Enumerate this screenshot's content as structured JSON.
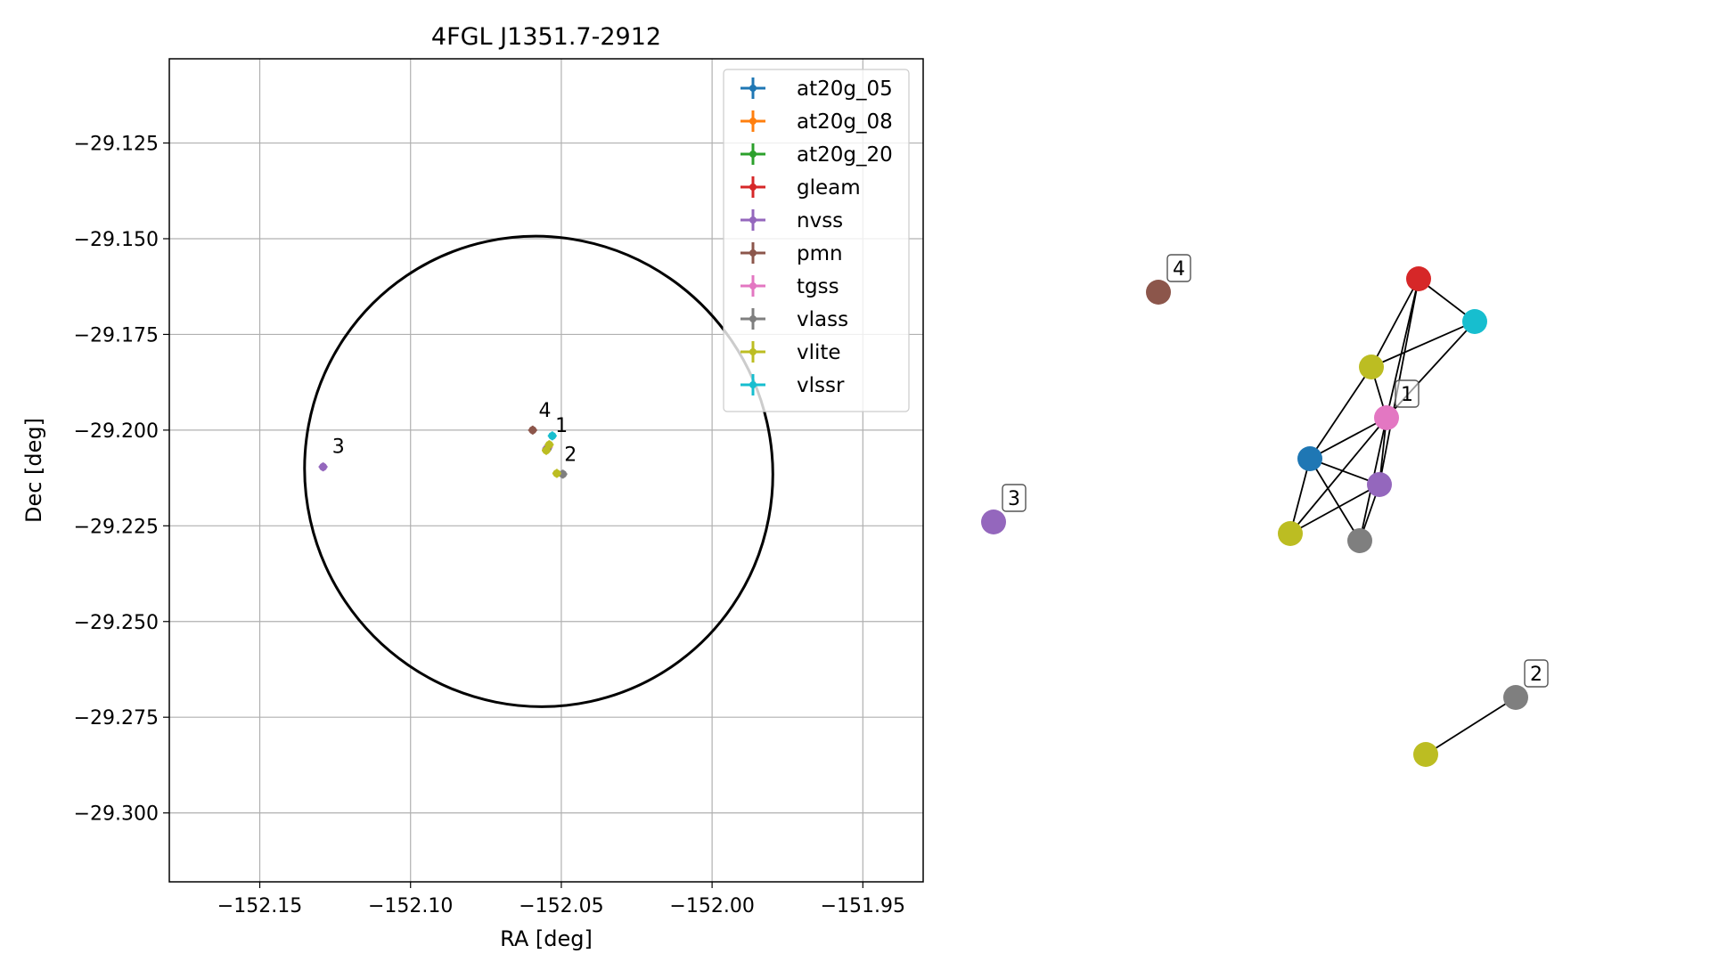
{
  "chart_data": [
    {
      "type": "scatter",
      "title": "4FGL J1351.7-2912",
      "xlabel": "RA [deg]",
      "ylabel": "Dec [deg]",
      "xlim": [
        -152.18,
        -151.93
      ],
      "ylim": [
        -29.318,
        -29.103
      ],
      "grid": true,
      "legend_position": "top-right",
      "x_ticks": [
        -152.15,
        -152.1,
        -152.05,
        -152.0,
        -151.95
      ],
      "x_tick_labels": [
        "−152.15",
        "−152.10",
        "−152.05",
        "−152.00",
        "−151.95"
      ],
      "y_ticks": [
        -29.125,
        -29.15,
        -29.175,
        -29.2,
        -29.225,
        -29.25,
        -29.275,
        -29.3
      ],
      "y_tick_labels": [
        "−29.125",
        "−29.150",
        "−29.175",
        "−29.200",
        "−29.225",
        "−29.250",
        "−29.275",
        "−29.300"
      ],
      "ellipse": {
        "center": [
          -152.0575,
          -29.2108
        ],
        "ra_semi": 0.0773,
        "dec_semi": 0.0617,
        "angle_deg": -34,
        "color": "#000000"
      },
      "series": [
        {
          "name": "at20g_05",
          "color": "#1f77b4",
          "points": [
            {
              "x": -152.0545,
              "y": -29.2046
            }
          ]
        },
        {
          "name": "at20g_08",
          "color": "#ff7f0e",
          "points": [
            {
              "x": -152.0547,
              "y": -29.2049
            }
          ]
        },
        {
          "name": "at20g_20",
          "color": "#2ca02c",
          "points": [
            {
              "x": -152.0546,
              "y": -29.2047
            }
          ]
        },
        {
          "name": "gleam",
          "color": "#d62728",
          "points": [
            {
              "x": -152.0548,
              "y": -29.205
            }
          ]
        },
        {
          "name": "nvss",
          "color": "#9467bd",
          "points": [
            {
              "x": -152.0548,
              "y": -29.2048
            },
            {
              "x": -152.129,
              "y": -29.2096
            }
          ]
        },
        {
          "name": "pmn",
          "color": "#8c564b",
          "points": [
            {
              "x": -152.0595,
              "y": -29.2
            }
          ]
        },
        {
          "name": "tgss",
          "color": "#e377c2",
          "points": [
            {
              "x": -152.0543,
              "y": -29.2044
            }
          ]
        },
        {
          "name": "vlass",
          "color": "#7f7f7f",
          "points": [
            {
              "x": -152.0547,
              "y": -29.205
            },
            {
              "x": -152.0495,
              "y": -29.2115
            }
          ]
        },
        {
          "name": "vlite",
          "color": "#bcbd22",
          "points": [
            {
              "x": -152.054,
              "y": -29.2038
            },
            {
              "x": -152.055,
              "y": -29.2053
            },
            {
              "x": -152.0515,
              "y": -29.2113
            }
          ]
        },
        {
          "name": "vlssr",
          "color": "#17becf",
          "points": [
            {
              "x": -152.053,
              "y": -29.2015
            }
          ]
        }
      ],
      "annotations": [
        {
          "text": "1",
          "x": -152.052,
          "y": -29.2005
        },
        {
          "text": "2",
          "x": -152.049,
          "y": -29.208
        },
        {
          "text": "3",
          "x": -152.126,
          "y": -29.206
        },
        {
          "text": "4",
          "x": -152.0575,
          "y": -29.1965
        }
      ]
    },
    {
      "type": "network-graph",
      "nodes": [
        {
          "id": "n-gleam",
          "color": "#d62728"
        },
        {
          "id": "n-vlssr",
          "color": "#17becf"
        },
        {
          "id": "n-vlite-a",
          "color": "#bcbd22"
        },
        {
          "id": "n-tgss",
          "color": "#e377c2"
        },
        {
          "id": "n-at20g",
          "color": "#1f77b4"
        },
        {
          "id": "n-nvss-a",
          "color": "#9467bd"
        },
        {
          "id": "n-vlite-b",
          "color": "#bcbd22"
        },
        {
          "id": "n-vlass-a",
          "color": "#7f7f7f"
        },
        {
          "id": "n-pmn",
          "color": "#8c564b"
        },
        {
          "id": "n-nvss-b",
          "color": "#9467bd"
        },
        {
          "id": "n-vlass-b",
          "color": "#7f7f7f"
        },
        {
          "id": "n-vlite-c",
          "color": "#bcbd22"
        }
      ],
      "edges": [
        [
          "n-gleam",
          "n-vlssr"
        ],
        [
          "n-gleam",
          "n-vlite-a"
        ],
        [
          "n-gleam",
          "n-nvss-a"
        ],
        [
          "n-gleam",
          "n-tgss"
        ],
        [
          "n-vlssr",
          "n-vlite-a"
        ],
        [
          "n-vlssr",
          "n-tgss"
        ],
        [
          "n-vlite-a",
          "n-at20g"
        ],
        [
          "n-vlite-a",
          "n-tgss"
        ],
        [
          "n-tgss",
          "n-at20g"
        ],
        [
          "n-tgss",
          "n-nvss-a"
        ],
        [
          "n-tgss",
          "n-vlite-b"
        ],
        [
          "n-tgss",
          "n-vlass-a"
        ],
        [
          "n-at20g",
          "n-nvss-a"
        ],
        [
          "n-at20g",
          "n-vlite-b"
        ],
        [
          "n-at20g",
          "n-vlass-a"
        ],
        [
          "n-nvss-a",
          "n-vlite-b"
        ],
        [
          "n-nvss-a",
          "n-vlass-a"
        ],
        [
          "n-vlass-b",
          "n-vlite-c"
        ]
      ],
      "labels": [
        {
          "text": "4",
          "node": "n-pmn"
        },
        {
          "text": "3",
          "node": "n-nvss-b"
        },
        {
          "text": "1",
          "node": "n-tgss"
        },
        {
          "text": "2",
          "node": "n-vlass-b"
        }
      ]
    }
  ]
}
